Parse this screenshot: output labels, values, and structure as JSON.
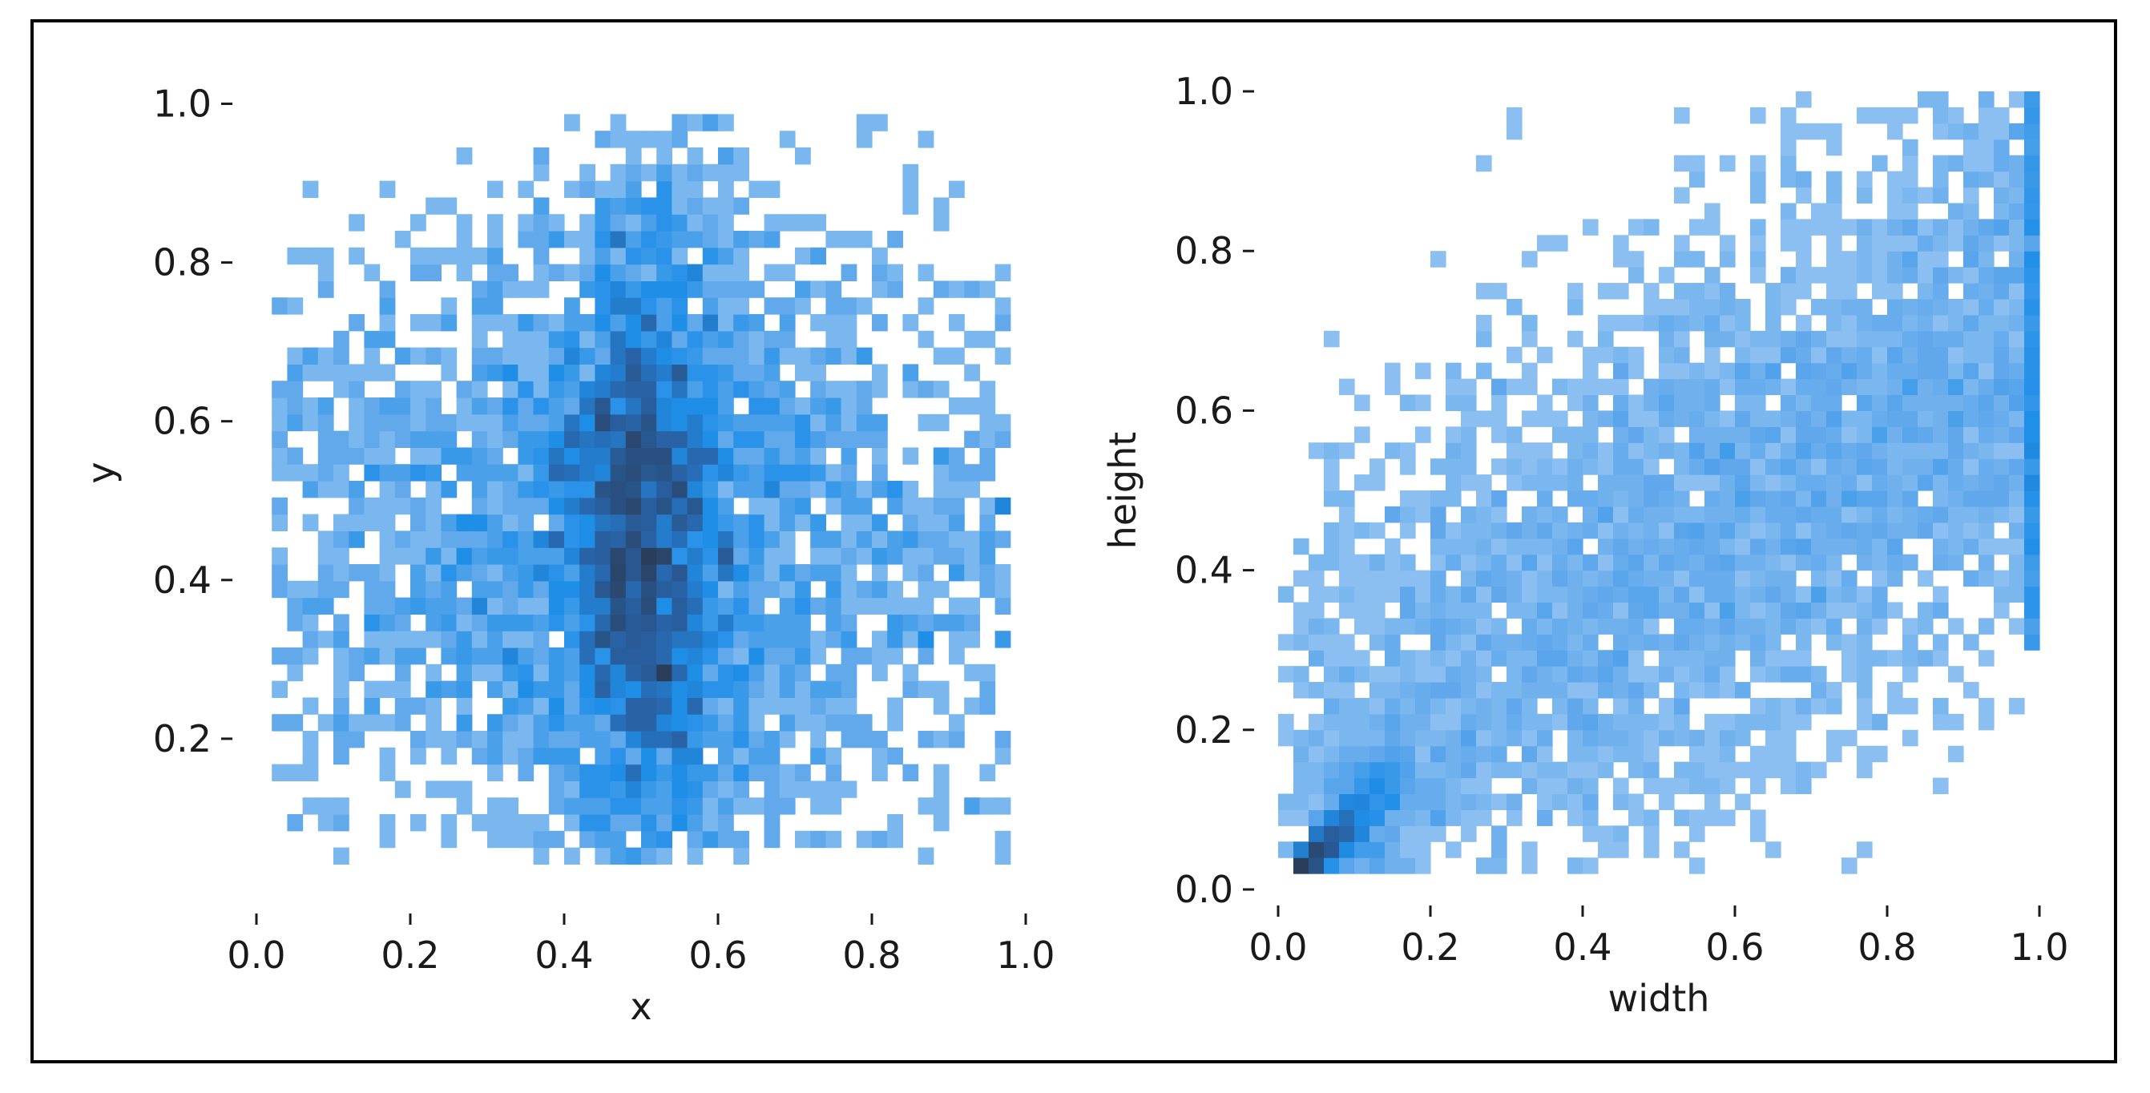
{
  "chart_data": [
    {
      "type": "heatmap",
      "xlabel": "x",
      "ylabel": "y",
      "xlim": [
        0.0,
        1.0
      ],
      "ylim": [
        0.0,
        1.05
      ],
      "xticks": [
        "0.0",
        "0.2",
        "0.4",
        "0.6",
        "0.8",
        "1.0"
      ],
      "yticks": [
        "0.2",
        "0.4",
        "0.6",
        "0.8",
        "1.0"
      ],
      "bins": 50,
      "color": "#1f8fe8",
      "x_marginal": {
        "shape": "peak",
        "center": 0.5,
        "spread": 0.12,
        "range": [
          0.02,
          0.98
        ]
      },
      "y_marginal": {
        "shape": "broad",
        "center": 0.45,
        "spread": 0.22,
        "range": [
          0.05,
          0.98
        ]
      },
      "grid": false,
      "legend": "none"
    },
    {
      "type": "heatmap",
      "xlabel": "width",
      "ylabel": "height",
      "xlim": [
        0.0,
        1.0
      ],
      "ylim": [
        0.0,
        1.0
      ],
      "xticks": [
        "0.0",
        "0.2",
        "0.4",
        "0.6",
        "0.8",
        "1.0"
      ],
      "yticks": [
        "0.0",
        "0.2",
        "0.4",
        "0.6",
        "0.8",
        "1.0"
      ],
      "bins": 50,
      "color": "#1f8fe8",
      "dense_corner": [
        0.05,
        0.08
      ],
      "edge_column": 1.0,
      "grid": false,
      "legend": "none"
    }
  ]
}
